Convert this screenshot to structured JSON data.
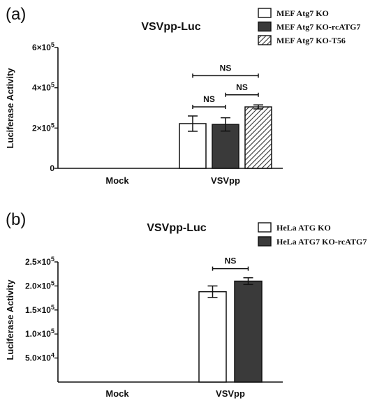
{
  "chart_data": [
    {
      "panel": "(a)",
      "type": "bar",
      "title": "VSVpp-Luc",
      "ylabel": "Luciferase Activity",
      "xlabel": "",
      "categories": [
        "Mock",
        "VSVpp"
      ],
      "ylim": [
        0,
        600000
      ],
      "yticks": [
        {
          "value": 0,
          "base": "0",
          "exp": ""
        },
        {
          "value": 200000,
          "base": "2×10",
          "exp": "5"
        },
        {
          "value": 400000,
          "base": "4×10",
          "exp": "5"
        },
        {
          "value": 600000,
          "base": "6×10",
          "exp": "5"
        }
      ],
      "legend_position": "top-right",
      "series": [
        {
          "name": "MEF Atg7 KO",
          "fill": "#ffffff",
          "pattern": "none",
          "values": [
            0,
            222000
          ],
          "errors": [
            0,
            38000
          ]
        },
        {
          "name": "MEF Atg7 KO-rcATG7",
          "fill": "#3a3a3a",
          "pattern": "none",
          "values": [
            0,
            218000
          ],
          "errors": [
            0,
            33000
          ]
        },
        {
          "name": "MEF Atg7 KO-T56",
          "fill": "#ffffff",
          "pattern": "hatch",
          "values": [
            0,
            305000
          ],
          "errors": [
            0,
            10000
          ]
        }
      ],
      "significance": [
        {
          "label": "NS",
          "category": 1,
          "from_series": 0,
          "to_series": 2,
          "y": 460000
        },
        {
          "label": "NS",
          "category": 1,
          "from_series": 0,
          "to_series": 1,
          "y": 305000
        },
        {
          "label": "NS",
          "category": 1,
          "from_series": 1,
          "to_series": 2,
          "y": 365000
        }
      ]
    },
    {
      "panel": "(b)",
      "type": "bar",
      "title": "VSVpp-Luc",
      "ylabel": "Luciferase Activity",
      "xlabel": "",
      "categories": [
        "Mock",
        "VSVpp"
      ],
      "ylim": [
        0,
        250000
      ],
      "yticks": [
        {
          "value": 50000,
          "base": "5.0×10",
          "exp": "4"
        },
        {
          "value": 100000,
          "base": "1.0×10",
          "exp": "5"
        },
        {
          "value": 150000,
          "base": "1.5×10",
          "exp": "5"
        },
        {
          "value": 200000,
          "base": "2.0×10",
          "exp": "5"
        },
        {
          "value": 250000,
          "base": "2.5×10",
          "exp": "5"
        }
      ],
      "legend_position": "top-right",
      "series": [
        {
          "name": "HeLa ATG KO",
          "fill": "#ffffff",
          "pattern": "none",
          "values": [
            0,
            188000
          ],
          "errors": [
            0,
            12000
          ]
        },
        {
          "name": "HeLa ATG7 KO-rcATG7",
          "fill": "#3a3a3a",
          "pattern": "none",
          "values": [
            0,
            210000
          ],
          "errors": [
            0,
            7000
          ]
        }
      ],
      "significance": [
        {
          "label": "NS",
          "category": 1,
          "from_series": 0,
          "to_series": 1,
          "y": 236000
        }
      ]
    }
  ]
}
